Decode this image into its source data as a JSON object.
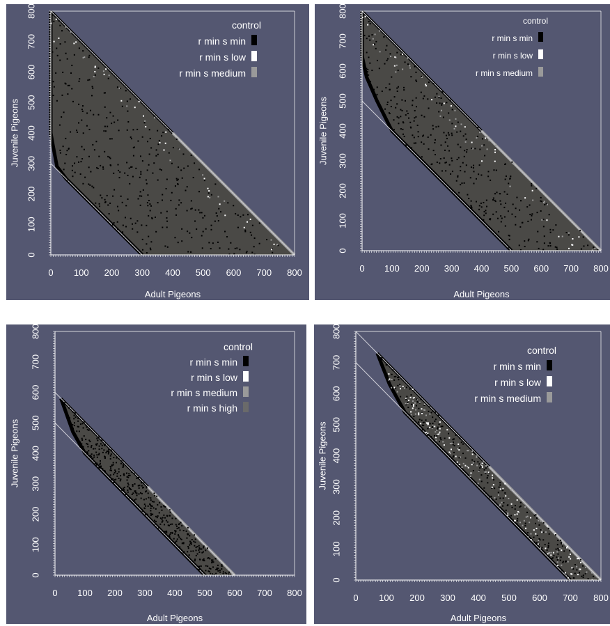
{
  "colors": {
    "background": "#545771",
    "fill": "#4a4946",
    "axis": "#ffffff",
    "r_min_s_min": "#000000",
    "r_min_s_low": "#ffffff",
    "r_min_s_medium": "#9a9a9a",
    "r_min_s_high": "#6a6a6a"
  },
  "chart_data": [
    {
      "type": "scatter",
      "xlabel": "Adult Pigeons",
      "ylabel": "Juvenile Pigeons",
      "xlim": [
        0,
        800
      ],
      "ylim": [
        0,
        800
      ],
      "x_ticks": [
        "0",
        "100",
        "200",
        "300",
        "400",
        "500",
        "600",
        "700",
        "800"
      ],
      "y_ticks": [
        "0",
        "100",
        "200",
        "300",
        "400",
        "500",
        "600",
        "700",
        "800"
      ],
      "legend_title": "control",
      "legend_position": "top-right",
      "legend": [
        {
          "label": "r min s min",
          "color": "#000000"
        },
        {
          "label": "r min s low",
          "color": "#ffffff"
        },
        {
          "label": "r min s medium",
          "color": "#9a9a9a"
        }
      ],
      "reference_lines": [
        [
          [
            0,
            800
          ],
          [
            800,
            0
          ]
        ],
        [
          [
            0,
            300
          ],
          [
            300,
            0
          ]
        ]
      ],
      "region": [
        [
          0,
          800
        ],
        [
          800,
          0
        ],
        [
          300,
          0
        ],
        [
          50,
          250
        ],
        [
          20,
          290
        ],
        [
          5,
          370
        ],
        [
          0,
          400
        ]
      ]
    },
    {
      "type": "scatter",
      "xlabel": "Adult Pigeons",
      "ylabel": "Juvenile Pigeons",
      "xlim": [
        0,
        800
      ],
      "ylim": [
        0,
        800
      ],
      "x_ticks": [
        "0",
        "100",
        "200",
        "300",
        "400",
        "500",
        "600",
        "700",
        "800"
      ],
      "y_ticks": [
        "0",
        "100",
        "200",
        "300",
        "400",
        "500",
        "600",
        "700",
        "800"
      ],
      "legend_title": "control",
      "legend_position": "top-right",
      "legend": [
        {
          "label": "r min s min",
          "color": "#000000"
        },
        {
          "label": "r min s low",
          "color": "#ffffff"
        },
        {
          "label": "r min s medium",
          "color": "#9a9a9a"
        }
      ],
      "reference_lines": [
        [
          [
            0,
            800
          ],
          [
            800,
            0
          ]
        ],
        [
          [
            0,
            500
          ],
          [
            500,
            0
          ]
        ]
      ],
      "region": [
        [
          0,
          800
        ],
        [
          800,
          0
        ],
        [
          500,
          0
        ],
        [
          100,
          400
        ],
        [
          50,
          500
        ],
        [
          15,
          580
        ],
        [
          0,
          650
        ]
      ]
    },
    {
      "type": "scatter",
      "xlabel": "Adult Pigeons",
      "ylabel": "Juvenile Pigeons",
      "xlim": [
        0,
        800
      ],
      "ylim": [
        0,
        800
      ],
      "x_ticks": [
        "0",
        "100",
        "200",
        "300",
        "400",
        "500",
        "600",
        "700",
        "800"
      ],
      "y_ticks": [
        "0",
        "100",
        "200",
        "300",
        "400",
        "500",
        "600",
        "700",
        "800"
      ],
      "legend_title": "control",
      "legend_position": "top-right",
      "legend": [
        {
          "label": "r min s min",
          "color": "#000000"
        },
        {
          "label": "r min s low",
          "color": "#ffffff"
        },
        {
          "label": "r min s medium",
          "color": "#9a9a9a"
        },
        {
          "label": "r min s high",
          "color": "#6a6a6a"
        }
      ],
      "reference_lines": [
        [
          [
            0,
            600
          ],
          [
            600,
            0
          ]
        ],
        [
          [
            0,
            500
          ],
          [
            500,
            0
          ]
        ]
      ],
      "region": [
        [
          20,
          580
        ],
        [
          600,
          0
        ],
        [
          500,
          0
        ],
        [
          100,
          400
        ],
        [
          60,
          470
        ]
      ]
    },
    {
      "type": "scatter",
      "xlabel": "Adult Pigeons",
      "ylabel": "Juvenile Pigeons",
      "xlim": [
        0,
        800
      ],
      "ylim": [
        0,
        800
      ],
      "x_ticks": [
        "0",
        "100",
        "200",
        "300",
        "400",
        "500",
        "600",
        "700",
        "800"
      ],
      "y_ticks": [
        "0",
        "100",
        "200",
        "300",
        "400",
        "500",
        "600",
        "700",
        "800"
      ],
      "legend_title": "control",
      "legend_position": "top-right",
      "legend": [
        {
          "label": "r min s min",
          "color": "#000000"
        },
        {
          "label": "r min s low",
          "color": "#ffffff"
        },
        {
          "label": "r min s medium",
          "color": "#9a9a9a"
        }
      ],
      "reference_lines": [
        [
          [
            0,
            800
          ],
          [
            800,
            0
          ]
        ],
        [
          [
            0,
            700
          ],
          [
            700,
            0
          ]
        ]
      ],
      "region": [
        [
          70,
          730
        ],
        [
          800,
          0
        ],
        [
          700,
          0
        ],
        [
          160,
          540
        ],
        [
          110,
          630
        ]
      ]
    }
  ]
}
